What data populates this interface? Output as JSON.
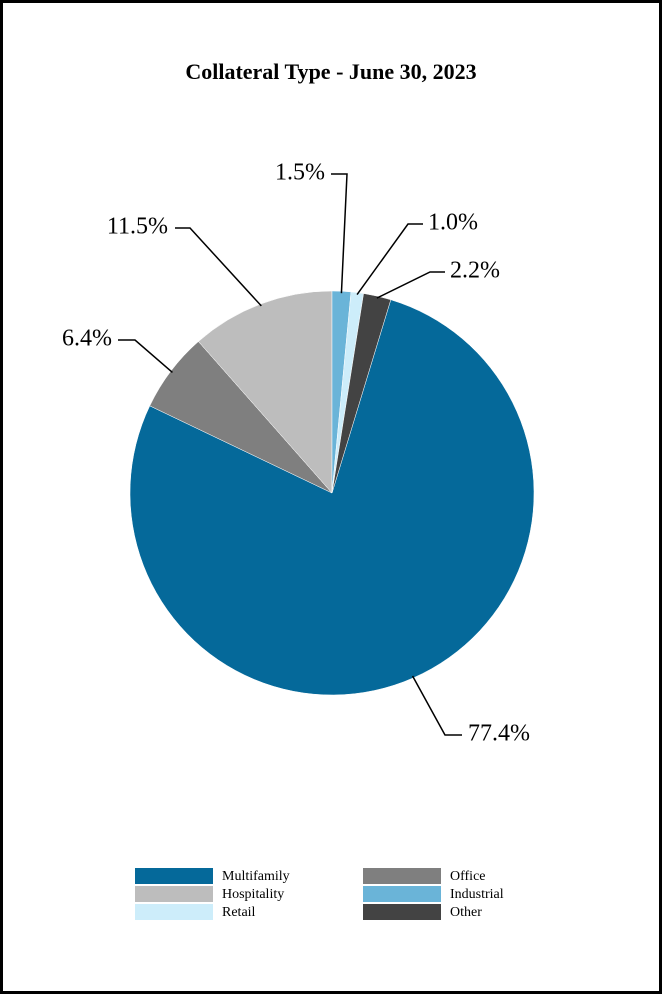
{
  "chart_data": {
    "type": "pie",
    "title": "Collateral Type - June 30, 2023",
    "categories": [
      "Multifamily",
      "Office",
      "Hospitality",
      "Industrial",
      "Retail",
      "Other"
    ],
    "values": [
      77.4,
      6.4,
      11.5,
      1.5,
      1.0,
      2.2
    ],
    "value_labels": [
      "77.4%",
      "6.4%",
      "11.5%",
      "1.5%",
      "1.0%",
      "2.2%"
    ],
    "colors": [
      "#05699a",
      "#7f7f7f",
      "#bdbdbd",
      "#6ab4d8",
      "#cdedfa",
      "#434343"
    ],
    "legend": "bottom"
  }
}
